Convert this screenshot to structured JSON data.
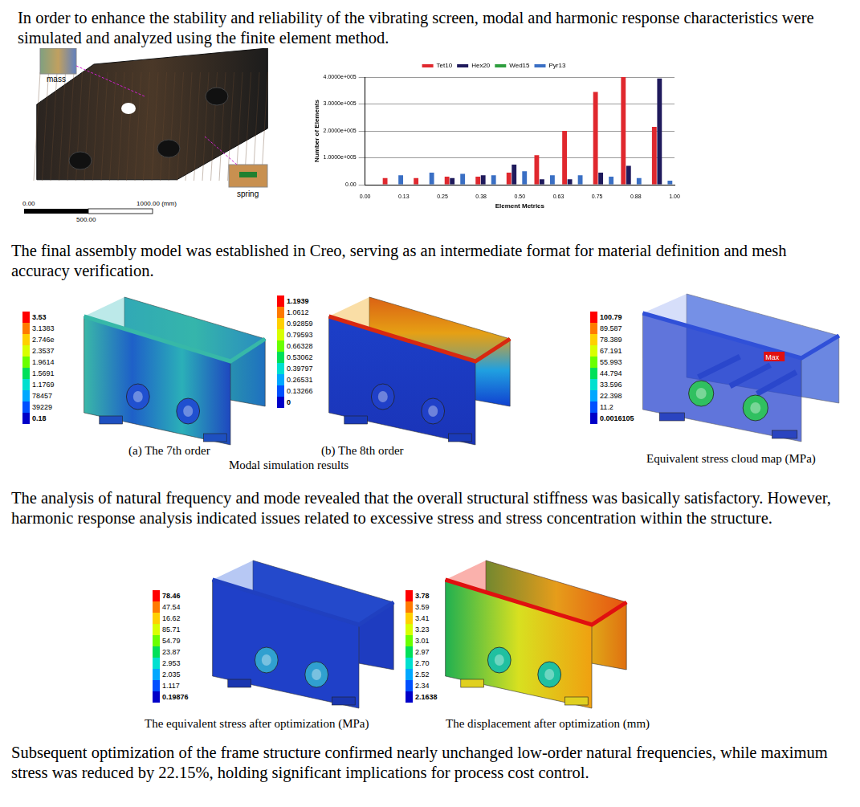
{
  "paragraphs": [
    "In order to enhance the stability and reliability of the vibrating screen, modal and harmonic response characteristics were simulated and analyzed using the finite element method.",
    "The final assembly model was established in Creo, serving as an intermediate format for material definition and mesh accuracy verification.",
    "The analysis of natural frequency and mode revealed that the overall structural stiffness was basically satisfactory. However, harmonic response analysis indicated issues related to excessive stress and stress concentration within the structure.",
    "Subsequent optimization of the frame structure confirmed nearly unchanged low-order natural frequencies, while maximum stress was reduced by 22.15%, holding significant implications for process cost control."
  ],
  "model_figure": {
    "labels": [
      "mass",
      "spring"
    ],
    "scale_bar": [
      "0.00",
      "500.00",
      "1000.00 (mm)"
    ]
  },
  "chart_data": {
    "type": "bar",
    "x_label": "Element Metrics",
    "y_label": "Number of Elements",
    "x": [
      0.09,
      0.19,
      0.29,
      0.39,
      0.49,
      0.58,
      0.67,
      0.77,
      0.86,
      0.96
    ],
    "series": [
      {
        "name": "Tet10",
        "color": "#e0282e",
        "values": [
          25000,
          25000,
          30000,
          30000,
          45000,
          110000,
          200000,
          345000,
          400000,
          215000
        ]
      },
      {
        "name": "Hex20",
        "color": "#1f1a5c",
        "values": [
          0,
          0,
          25000,
          35000,
          75000,
          20000,
          20000,
          45000,
          70000,
          395000
        ]
      },
      {
        "name": "Wed15",
        "color": "#2e9e3e",
        "values": [
          0,
          0,
          0,
          0,
          0,
          0,
          0,
          0,
          0,
          0
        ]
      },
      {
        "name": "Pyr13",
        "color": "#3a6fc4",
        "values": [
          35000,
          45000,
          40000,
          35000,
          50000,
          35000,
          35000,
          30000,
          25000,
          15000
        ]
      }
    ],
    "xlim": [
      0,
      1
    ],
    "xticks": [
      {
        "value": 0,
        "label": "0.00"
      },
      {
        "value": 0.125,
        "label": "0.13"
      },
      0.25,
      {
        "value": 0.375,
        "label": "0.38"
      },
      {
        "value": 0.5,
        "label": "0.50"
      },
      {
        "value": 0.625,
        "label": "0.63"
      },
      0.75,
      {
        "value": 0.875,
        "label": "0.88"
      },
      {
        "value": 1,
        "label": "1.00"
      }
    ],
    "ylim": [
      0,
      400000
    ],
    "yticks": [
      {
        "value": 0,
        "label": "0.00"
      },
      {
        "value": 100000,
        "label": "1.0000e+005"
      },
      {
        "value": 200000,
        "label": "2.0000e+005"
      },
      {
        "value": 300000,
        "label": "3.0000e+005"
      },
      {
        "value": 400000,
        "label": "4.0000e+005"
      }
    ],
    "grid": true,
    "legend": "top"
  },
  "modal_figures": [
    {
      "caption": "(a) The 7th order",
      "colorbar": [
        "3.53",
        "3.1383",
        "2.746e",
        "2.3537",
        "1.9614",
        "1.5691",
        "1.1769",
        "78457",
        "39229",
        "0.18"
      ]
    },
    {
      "caption": "(b) The 8th order",
      "colorbar": [
        "1.1939",
        "1.0612",
        "0.92859",
        "0.79593",
        "0.66328",
        "0.53062",
        "0.39797",
        "0.26531",
        "0.13266",
        "0"
      ]
    }
  ],
  "modal_caption": "Modal simulation results",
  "stress_figure": {
    "caption": "Equivalent stress cloud map (MPa)",
    "colorbar": [
      "100.79",
      "89.587",
      "78.389",
      "67.191",
      "55.993",
      "44.794",
      "33.596",
      "22.398",
      "11.2",
      "0.0016105"
    ],
    "max_label": "Max"
  },
  "optimized_figures": [
    {
      "caption": "The equivalent stress after optimization (MPa)",
      "colorbar": [
        "78.46",
        "47.54",
        "16.62",
        "85.71",
        "54.79",
        "23.87",
        "2.953",
        "2.035",
        "1.117",
        "0.19876"
      ]
    },
    {
      "caption": "The displacement after optimization (mm)",
      "colorbar": [
        "3.78",
        "3.59",
        "3.41",
        "3.23",
        "3.01",
        "2.97",
        "2.70",
        "2.52",
        "2.34",
        "2.1638"
      ]
    }
  ]
}
